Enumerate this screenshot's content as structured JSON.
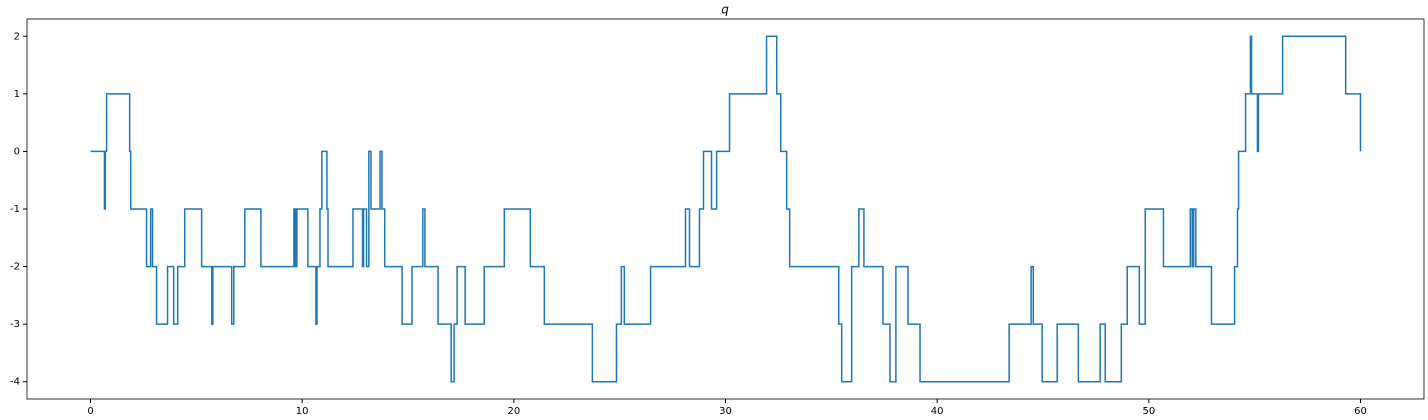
{
  "chart_data": {
    "type": "line",
    "title": "q",
    "drawstyle": "steps-post",
    "xlim": [
      -3,
      63
    ],
    "ylim": [
      -4.3,
      2.3
    ],
    "xticks": [
      0,
      10,
      20,
      30,
      40,
      50,
      60
    ],
    "yticks": [
      -4,
      -3,
      -2,
      -1,
      0,
      1,
      2
    ],
    "series": [
      {
        "color": "#1f77b4",
        "x": [
          0,
          0.66,
          0.7,
          0.76,
          1.85,
          1.9,
          2.65,
          2.84,
          2.93,
          3.12,
          3.64,
          3.93,
          4.12,
          4.45,
          5.25,
          5.73,
          5.78,
          6.67,
          6.77,
          7.29,
          8.05,
          9.61,
          9.68,
          9.75,
          10.27,
          10.65,
          10.7,
          10.84,
          10.93,
          11.17,
          11.22,
          12.4,
          12.85,
          12.9,
          13.04,
          13.15,
          13.25,
          13.68,
          13.77,
          13.9,
          14.72,
          15.19,
          15.7,
          15.8,
          16.42,
          17.04,
          17.18,
          17.32,
          17.7,
          18.6,
          19.55,
          20.78,
          21.44,
          23.71,
          24.85,
          25.08,
          25.22,
          26.46,
          28.11,
          28.3,
          28.77,
          28.96,
          29.34,
          29.58,
          30.19,
          31.94,
          32.42,
          32.61,
          32.89,
          33.03,
          35.35,
          35.49,
          35.96,
          36.3,
          36.54,
          37.44,
          37.77,
          38.05,
          38.62,
          39.19,
          43.4,
          44.44,
          44.54,
          44.96,
          45.67,
          46.67,
          47.7,
          47.94,
          48.7,
          48.98,
          49.55,
          49.83,
          50.69,
          51.96,
          52.05,
          52.12,
          52.22,
          52.96,
          54.05,
          54.19,
          54.24,
          54.57,
          54.8,
          54.85,
          55.13,
          55.18,
          56.32,
          59.3,
          60.0
        ],
        "values": [
          0,
          -1,
          0,
          1,
          0,
          -1,
          -2,
          -1,
          -2,
          -3,
          -2,
          -3,
          -2,
          -1,
          -2,
          -3,
          -2,
          -3,
          -2,
          -1,
          -2,
          -1,
          -2,
          -1,
          -2,
          -3,
          -2,
          -1,
          0,
          -1,
          -2,
          -1,
          -2,
          -1,
          -2,
          0,
          -1,
          0,
          -1,
          -2,
          -3,
          -2,
          -1,
          -2,
          -3,
          -4,
          -3,
          -2,
          -3,
          -2,
          -1,
          -2,
          -3,
          -4,
          -3,
          -2,
          -3,
          -2,
          -1,
          -2,
          -1,
          0,
          -1,
          0,
          1,
          2,
          1,
          0,
          -1,
          -2,
          -3,
          -4,
          -2,
          -1,
          -2,
          -3,
          -4,
          -2,
          -3,
          -4,
          -3,
          -2,
          -3,
          -4,
          -3,
          -4,
          -3,
          -4,
          -3,
          -2,
          -3,
          -1,
          -2,
          -1,
          -2,
          -1,
          -2,
          -3,
          -2,
          -1,
          0,
          1,
          2,
          1,
          0,
          1,
          2,
          1,
          0
        ]
      }
    ]
  }
}
